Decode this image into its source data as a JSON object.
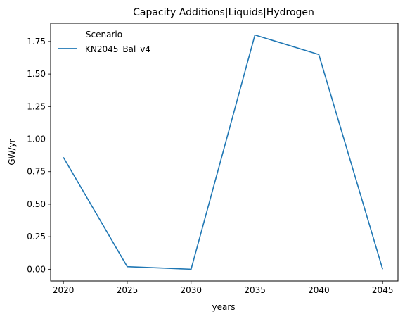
{
  "chart_data": {
    "type": "line",
    "title": "Capacity Additions|Liquids|Hydrogen",
    "xlabel": "years",
    "ylabel": "GW/yr",
    "x": [
      2020,
      2025,
      2030,
      2035,
      2040,
      2045
    ],
    "series": [
      {
        "name": "KN2045_Bal_v4",
        "values": [
          0.86,
          0.02,
          0.0,
          1.8,
          1.65,
          0.0
        ],
        "color": "#1f77b4"
      }
    ],
    "xticks": [
      2020,
      2025,
      2030,
      2035,
      2040,
      2045
    ],
    "yticks": [
      0.0,
      0.25,
      0.5,
      0.75,
      1.0,
      1.25,
      1.5,
      1.75
    ],
    "ytick_labels": [
      "0.00",
      "0.25",
      "0.50",
      "0.75",
      "1.00",
      "1.25",
      "1.50",
      "1.75"
    ],
    "xlim": [
      2019,
      2046.2
    ],
    "ylim": [
      -0.09,
      1.89
    ],
    "grid": false,
    "legend": {
      "title": "Scenario",
      "placement": "top-left",
      "frame": false
    }
  }
}
